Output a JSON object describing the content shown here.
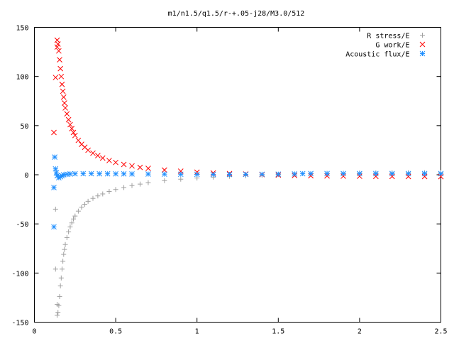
{
  "chart_data": {
    "type": "scatter",
    "title": "m1/n1.5/q1.5/r-+.05-j28/M3.0/512",
    "xlim": [
      0,
      2.5
    ],
    "ylim": [
      -150,
      150
    ],
    "x_ticks": [
      "0",
      "0.5",
      "1",
      "1.5",
      "2",
      "2.5"
    ],
    "y_ticks": [
      "150",
      "100",
      "50",
      "0",
      "-50",
      "-100",
      "-150"
    ],
    "grid": false,
    "legend_position": "top-right",
    "series": [
      {
        "name": "R stress/E",
        "marker": "plus",
        "color": "#a0a0a0",
        "points": [
          [
            0.13,
            -35
          ],
          [
            0.13,
            -96
          ],
          [
            0.14,
            -132
          ],
          [
            0.14,
            -143
          ],
          [
            0.145,
            -140
          ],
          [
            0.15,
            -133
          ],
          [
            0.155,
            -124
          ],
          [
            0.16,
            -113
          ],
          [
            0.165,
            -105
          ],
          [
            0.17,
            -96
          ],
          [
            0.175,
            -88
          ],
          [
            0.18,
            -81
          ],
          [
            0.185,
            -76
          ],
          [
            0.19,
            -71
          ],
          [
            0.2,
            -64
          ],
          [
            0.21,
            -58
          ],
          [
            0.22,
            -53
          ],
          [
            0.23,
            -49
          ],
          [
            0.24,
            -45
          ],
          [
            0.25,
            -42
          ],
          [
            0.27,
            -37
          ],
          [
            0.29,
            -33
          ],
          [
            0.31,
            -30
          ],
          [
            0.33,
            -27
          ],
          [
            0.36,
            -24
          ],
          [
            0.39,
            -21.5
          ],
          [
            0.42,
            -19.5
          ],
          [
            0.46,
            -17
          ],
          [
            0.5,
            -15
          ],
          [
            0.55,
            -13
          ],
          [
            0.6,
            -11
          ],
          [
            0.65,
            -9.5
          ],
          [
            0.7,
            -8
          ],
          [
            0.8,
            -6
          ],
          [
            0.9,
            -4.5
          ],
          [
            1.0,
            -3.3
          ],
          [
            1.1,
            -2.4
          ],
          [
            1.2,
            -1.6
          ],
          [
            1.3,
            -1
          ],
          [
            1.4,
            -0.5
          ],
          [
            1.5,
            0.2
          ],
          [
            1.6,
            0.7
          ],
          [
            1.7,
            1.1
          ],
          [
            1.8,
            1.4
          ],
          [
            1.9,
            1.6
          ],
          [
            2.0,
            1.8
          ],
          [
            2.1,
            1.9
          ],
          [
            2.2,
            2.0
          ],
          [
            2.3,
            2.1
          ],
          [
            2.4,
            2.1
          ],
          [
            2.5,
            2.2
          ]
        ]
      },
      {
        "name": "G work/E",
        "marker": "cross",
        "color": "#ff0000",
        "points": [
          [
            0.12,
            43
          ],
          [
            0.13,
            99
          ],
          [
            0.14,
            130
          ],
          [
            0.14,
            137
          ],
          [
            0.145,
            133
          ],
          [
            0.15,
            126
          ],
          [
            0.155,
            117
          ],
          [
            0.16,
            108
          ],
          [
            0.165,
            100
          ],
          [
            0.17,
            92
          ],
          [
            0.175,
            85
          ],
          [
            0.18,
            79
          ],
          [
            0.185,
            73
          ],
          [
            0.19,
            68
          ],
          [
            0.2,
            62
          ],
          [
            0.21,
            56
          ],
          [
            0.22,
            51
          ],
          [
            0.23,
            47
          ],
          [
            0.24,
            43
          ],
          [
            0.25,
            40
          ],
          [
            0.27,
            35
          ],
          [
            0.29,
            31
          ],
          [
            0.31,
            28
          ],
          [
            0.33,
            25
          ],
          [
            0.36,
            22
          ],
          [
            0.39,
            19.5
          ],
          [
            0.42,
            17
          ],
          [
            0.46,
            14.5
          ],
          [
            0.5,
            12.5
          ],
          [
            0.55,
            10.5
          ],
          [
            0.6,
            9
          ],
          [
            0.65,
            7.5
          ],
          [
            0.7,
            6.5
          ],
          [
            0.8,
            4.8
          ],
          [
            0.9,
            3.6
          ],
          [
            1.0,
            2.6
          ],
          [
            1.1,
            1.8
          ],
          [
            1.2,
            1.2
          ],
          [
            1.3,
            0.7
          ],
          [
            1.4,
            0.2
          ],
          [
            1.5,
            -0.3
          ],
          [
            1.6,
            -0.7
          ],
          [
            1.7,
            -1.0
          ],
          [
            1.8,
            -1.2
          ],
          [
            1.9,
            -1.4
          ],
          [
            2.0,
            -1.5
          ],
          [
            2.1,
            -1.6
          ],
          [
            2.2,
            -1.7
          ],
          [
            2.3,
            -1.8
          ],
          [
            2.4,
            -1.8
          ],
          [
            2.5,
            -1.9
          ]
        ]
      },
      {
        "name": "Acoustic flux/E",
        "marker": "star",
        "color": "#1f8fff",
        "points": [
          [
            0.12,
            -53
          ],
          [
            0.12,
            -13
          ],
          [
            0.125,
            18
          ],
          [
            0.13,
            6
          ],
          [
            0.135,
            2
          ],
          [
            0.14,
            -1
          ],
          [
            0.15,
            -3
          ],
          [
            0.16,
            -2
          ],
          [
            0.17,
            -1
          ],
          [
            0.18,
            0
          ],
          [
            0.2,
            0.5
          ],
          [
            0.22,
            0.8
          ],
          [
            0.25,
            1
          ],
          [
            0.3,
            1.1
          ],
          [
            0.35,
            1.1
          ],
          [
            0.4,
            1
          ],
          [
            0.45,
            1
          ],
          [
            0.5,
            0.9
          ],
          [
            0.55,
            0.9
          ],
          [
            0.6,
            0.8
          ],
          [
            0.7,
            0.7
          ],
          [
            0.8,
            0.6
          ],
          [
            0.9,
            0.5
          ],
          [
            1.0,
            0.4
          ],
          [
            1.1,
            0.3
          ],
          [
            1.2,
            0.3
          ],
          [
            1.3,
            0.4
          ],
          [
            1.4,
            0.5
          ],
          [
            1.5,
            0.6
          ],
          [
            1.6,
            0.8
          ],
          [
            1.65,
            1.1
          ],
          [
            1.7,
            1.2
          ],
          [
            1.8,
            1.2
          ],
          [
            1.9,
            1.2
          ],
          [
            2.0,
            1.2
          ],
          [
            2.1,
            1.2
          ],
          [
            2.2,
            1.2
          ],
          [
            2.3,
            1.2
          ],
          [
            2.4,
            1.2
          ],
          [
            2.5,
            1.2
          ]
        ]
      }
    ]
  }
}
